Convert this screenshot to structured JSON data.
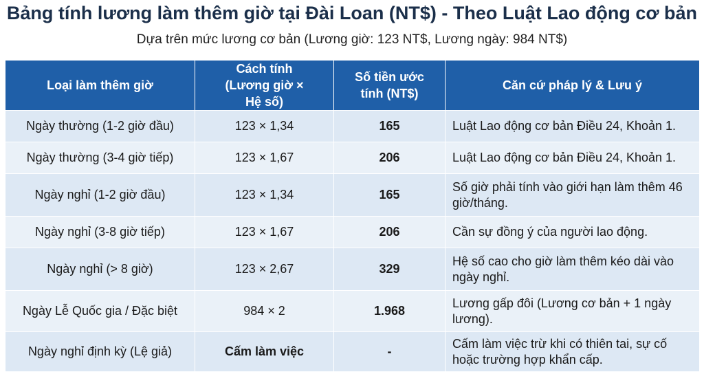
{
  "title": "Bảng tính lương làm thêm giờ tại Đài Loan (NT$) - Theo Luật Lao động cơ bản",
  "subtitle": "Dựa trên mức lương cơ bản (Lương giờ: 123 NT$, Lương ngày: 984 NT$)",
  "table": {
    "headers": [
      "Loại làm thêm giờ",
      "Cách tính (Lương giờ × Hệ số)",
      "Số tiền ước tính (NT$)",
      "Căn cứ pháp lý & Lưu ý"
    ],
    "rows": [
      {
        "type": "Ngày thường (1-2 giờ đầu)",
        "formula": "123 × 1,34",
        "amount": "165",
        "note": "Luật Lao động cơ bản Điều 24, Khoản 1."
      },
      {
        "type": "Ngày thường (3-4 giờ tiếp)",
        "formula": "123 × 1,67",
        "amount": "206",
        "note": "Luật Lao động cơ bản Điều 24, Khoản 1."
      },
      {
        "type": "Ngày nghỉ (1-2 giờ đầu)",
        "formula": "123 × 1,34",
        "amount": "165",
        "note": "Số giờ phải tính vào giới hạn làm thêm 46 giờ/tháng."
      },
      {
        "type": "Ngày nghỉ (3-8 giờ tiếp)",
        "formula": "123 × 1,67",
        "amount": "206",
        "note": "Cần sự đồng ý của người lao động."
      },
      {
        "type": "Ngày nghỉ (> 8 giờ)",
        "formula": "123 × 2,67",
        "amount": "329",
        "note": "Hệ số cao cho giờ làm thêm kéo dài vào ngày nghỉ."
      },
      {
        "type": "Ngày Lễ Quốc gia / Đặc biệt",
        "formula": "984 × 2",
        "amount": "1.968",
        "note": "Lương gấp đôi (Lương cơ bản + 1 ngày lương)."
      },
      {
        "type": "Ngày nghỉ định kỳ (Lệ giả)",
        "formula": "Cấm làm việc",
        "amount": "-",
        "note": "Cấm làm việc trừ khi có thiên tai, sự cố hoặc trường hợp khẩn cấp."
      }
    ]
  },
  "colors": {
    "header_bg": "#1f5fa8",
    "row_bg_odd": "#dde8f4",
    "row_bg_even": "#eaf1f8",
    "title_color": "#1b2f4a"
  }
}
